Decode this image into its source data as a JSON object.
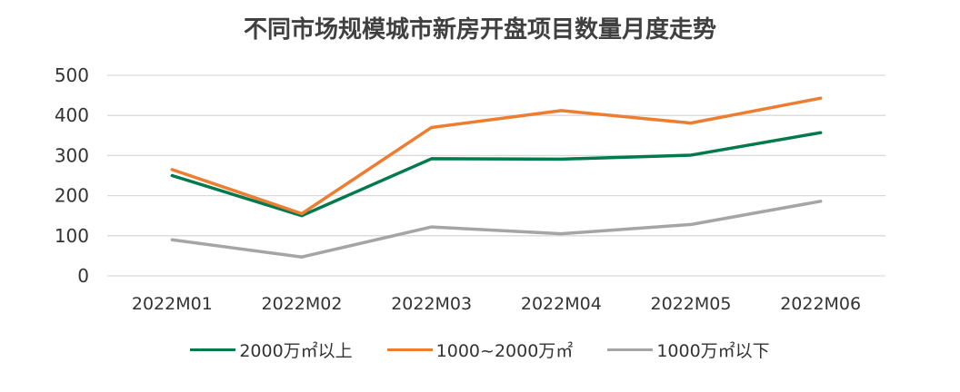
{
  "chart_data": {
    "type": "line",
    "title": "不同市场规模城市新房开盘项目数量月度走势",
    "categories": [
      "2022M01",
      "2022M02",
      "2022M03",
      "2022M04",
      "2022M05",
      "2022M06"
    ],
    "ylim": [
      0,
      500
    ],
    "yticks": [
      "0",
      "100",
      "200",
      "300",
      "400",
      "500"
    ],
    "grid": "horizontal",
    "legend_position": "bottom",
    "series": [
      {
        "name": "2000万㎡以上",
        "color": "#007A4D",
        "values": [
          250,
          150,
          292,
          291,
          301,
          357
        ]
      },
      {
        "name": "1000~2000万㎡",
        "color": "#ED7D31",
        "values": [
          265,
          155,
          370,
          412,
          381,
          443
        ]
      },
      {
        "name": "1000万㎡以下",
        "color": "#A5A5A5",
        "values": [
          90,
          47,
          122,
          105,
          128,
          186
        ]
      }
    ]
  }
}
